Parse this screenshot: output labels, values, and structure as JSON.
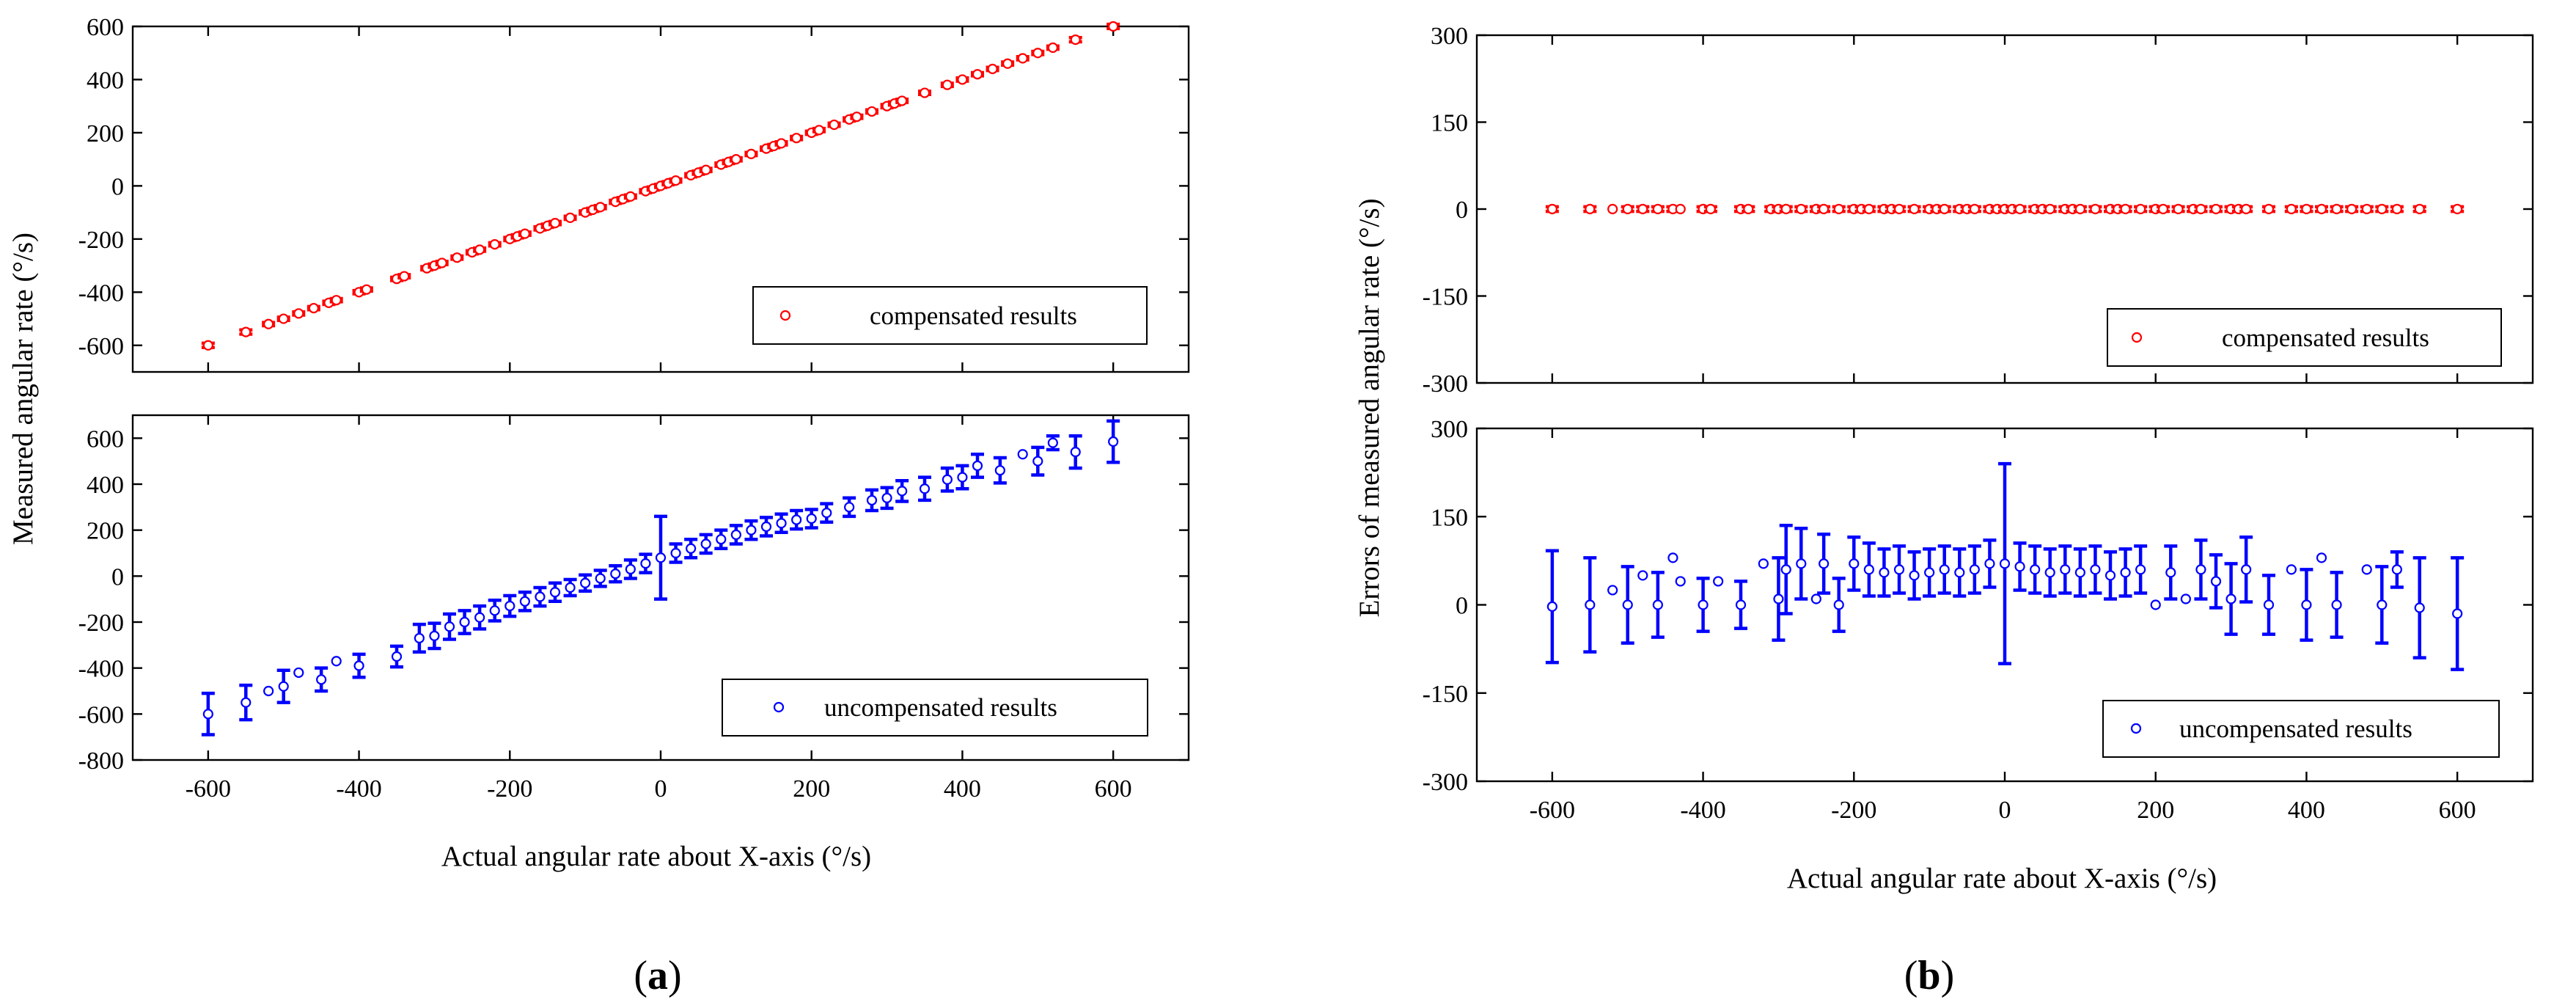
{
  "figure": {
    "panel_a_label": "a",
    "panel_b_label": "b"
  },
  "chart_data": [
    {
      "id": "a-top",
      "type": "scatter",
      "panel": "a",
      "xlabel": "Actual angular rate about X-axis (°/s)",
      "ylabel": "Measured angular rate (°/s)",
      "xlim": [
        -700,
        700
      ],
      "ylim": [
        -700,
        600
      ],
      "xticks": [
        -600,
        -400,
        -200,
        0,
        200,
        400,
        600
      ],
      "yticks": [
        -600,
        -400,
        -200,
        0,
        200,
        400,
        600
      ],
      "show_xtick_labels": false,
      "legend": {
        "label": "compensated results",
        "position": "bottom-right"
      },
      "series": [
        {
          "name": "compensated results",
          "color": "#ff0000",
          "x": [
            -600,
            -550,
            -520,
            -500,
            -480,
            -460,
            -440,
            -430,
            -400,
            -390,
            -350,
            -340,
            -310,
            -300,
            -290,
            -270,
            -250,
            -240,
            -220,
            -200,
            -190,
            -180,
            -160,
            -150,
            -140,
            -120,
            -100,
            -90,
            -80,
            -60,
            -50,
            -40,
            -20,
            -10,
            0,
            10,
            20,
            40,
            50,
            60,
            80,
            90,
            100,
            120,
            140,
            150,
            160,
            180,
            200,
            210,
            230,
            250,
            260,
            280,
            300,
            310,
            320,
            350,
            380,
            400,
            420,
            440,
            460,
            480,
            500,
            520,
            550,
            600
          ],
          "y": [
            -600,
            -550,
            -520,
            -500,
            -480,
            -460,
            -440,
            -430,
            -400,
            -390,
            -350,
            -340,
            -310,
            -300,
            -290,
            -270,
            -250,
            -240,
            -220,
            -200,
            -190,
            -180,
            -160,
            -150,
            -140,
            -120,
            -100,
            -90,
            -80,
            -60,
            -50,
            -40,
            -20,
            -10,
            0,
            10,
            20,
            40,
            50,
            60,
            80,
            90,
            100,
            120,
            140,
            150,
            160,
            180,
            200,
            210,
            230,
            250,
            260,
            280,
            300,
            310,
            320,
            350,
            380,
            400,
            420,
            440,
            460,
            480,
            500,
            520,
            550,
            600
          ],
          "err": [
            8,
            8,
            6,
            6,
            6,
            6,
            6,
            6,
            6,
            6,
            6,
            6,
            6,
            6,
            6,
            6,
            6,
            6,
            6,
            6,
            6,
            6,
            6,
            6,
            6,
            6,
            6,
            6,
            6,
            6,
            6,
            6,
            6,
            6,
            6,
            6,
            6,
            6,
            6,
            6,
            6,
            6,
            6,
            6,
            6,
            6,
            6,
            6,
            6,
            6,
            6,
            6,
            6,
            6,
            6,
            6,
            6,
            6,
            6,
            6,
            6,
            6,
            6,
            6,
            6,
            6,
            8,
            8
          ]
        }
      ]
    },
    {
      "id": "a-bottom",
      "type": "scatter",
      "panel": "a",
      "xlabel": "Actual angular rate about X-axis (°/s)",
      "ylabel": "Measured angular rate (°/s)",
      "xlim": [
        -700,
        700
      ],
      "ylim": [
        -800,
        700
      ],
      "xticks": [
        -600,
        -400,
        -200,
        0,
        200,
        400,
        600
      ],
      "yticks": [
        -800,
        -600,
        -400,
        -200,
        0,
        200,
        400,
        600
      ],
      "show_xtick_labels": true,
      "legend": {
        "label": "uncompensated results",
        "position": "bottom-right"
      },
      "series": [
        {
          "name": "uncompensated results",
          "color": "#0000ff",
          "x": [
            -600,
            -550,
            -520,
            -500,
            -480,
            -450,
            -430,
            -400,
            -350,
            -320,
            -300,
            -280,
            -260,
            -240,
            -220,
            -200,
            -180,
            -160,
            -140,
            -120,
            -100,
            -80,
            -60,
            -40,
            -20,
            0,
            20,
            40,
            60,
            80,
            100,
            120,
            140,
            160,
            180,
            200,
            220,
            250,
            280,
            300,
            320,
            350,
            380,
            400,
            420,
            450,
            480,
            500,
            520,
            550,
            600
          ],
          "y": [
            -600,
            -550,
            -500,
            -480,
            -420,
            -450,
            -370,
            -390,
            -350,
            -270,
            -260,
            -220,
            -200,
            -180,
            -150,
            -130,
            -110,
            -90,
            -70,
            -50,
            -30,
            -10,
            10,
            30,
            55,
            80,
            100,
            120,
            140,
            160,
            180,
            200,
            215,
            230,
            245,
            250,
            275,
            300,
            330,
            340,
            370,
            380,
            420,
            430,
            480,
            460,
            530,
            500,
            580,
            540,
            585
          ],
          "err": [
            90,
            75,
            0,
            70,
            0,
            50,
            0,
            50,
            45,
            60,
            55,
            55,
            50,
            50,
            45,
            45,
            40,
            40,
            40,
            35,
            35,
            35,
            35,
            40,
            40,
            180,
            40,
            40,
            40,
            40,
            40,
            40,
            40,
            40,
            40,
            40,
            40,
            40,
            45,
            45,
            45,
            50,
            50,
            50,
            50,
            55,
            0,
            60,
            30,
            70,
            90
          ]
        }
      ]
    },
    {
      "id": "b-top",
      "type": "scatter",
      "panel": "b",
      "xlabel": "Actual angular rate about X-axis (°/s)",
      "ylabel": "Errors of measured angular rate (°/s)",
      "xlim": [
        -700,
        700
      ],
      "ylim": [
        -300,
        300
      ],
      "xticks": [
        -600,
        -400,
        -200,
        0,
        200,
        400,
        600
      ],
      "yticks": [
        -300,
        -150,
        0,
        150,
        300
      ],
      "show_xtick_labels": false,
      "legend": {
        "label": "compensated results",
        "position": "bottom-right"
      },
      "series": [
        {
          "name": "compensated results",
          "color": "#ff0000",
          "x": [
            -600,
            -550,
            -520,
            -500,
            -480,
            -460,
            -440,
            -430,
            -400,
            -390,
            -350,
            -340,
            -310,
            -300,
            -290,
            -270,
            -250,
            -240,
            -220,
            -200,
            -190,
            -180,
            -160,
            -150,
            -140,
            -120,
            -100,
            -90,
            -80,
            -60,
            -50,
            -40,
            -20,
            -10,
            0,
            10,
            20,
            40,
            50,
            60,
            80,
            90,
            100,
            120,
            140,
            150,
            160,
            180,
            200,
            210,
            230,
            250,
            260,
            280,
            300,
            310,
            320,
            350,
            380,
            400,
            420,
            440,
            460,
            480,
            500,
            520,
            550,
            600
          ],
          "y": [
            0,
            0,
            0,
            0,
            0,
            0,
            0,
            0,
            0,
            0,
            0,
            0,
            0,
            0,
            0,
            0,
            0,
            0,
            0,
            0,
            0,
            0,
            0,
            0,
            0,
            0,
            0,
            0,
            0,
            0,
            0,
            0,
            0,
            0,
            0,
            0,
            0,
            0,
            0,
            0,
            0,
            0,
            0,
            0,
            0,
            0,
            0,
            0,
            0,
            0,
            0,
            0,
            0,
            0,
            0,
            0,
            0,
            0,
            0,
            0,
            0,
            0,
            0,
            0,
            0,
            0,
            0,
            0
          ],
          "err": [
            4,
            4,
            0,
            4,
            4,
            4,
            4,
            0,
            4,
            4,
            4,
            4,
            4,
            4,
            4,
            4,
            4,
            4,
            4,
            4,
            4,
            4,
            4,
            4,
            4,
            4,
            4,
            4,
            4,
            4,
            4,
            4,
            4,
            4,
            4,
            4,
            4,
            4,
            4,
            4,
            4,
            4,
            4,
            4,
            4,
            4,
            4,
            4,
            4,
            4,
            4,
            4,
            4,
            4,
            4,
            4,
            4,
            4,
            4,
            4,
            4,
            4,
            4,
            4,
            4,
            4,
            4,
            4
          ]
        }
      ]
    },
    {
      "id": "b-bottom",
      "type": "scatter",
      "panel": "b",
      "xlabel": "Actual angular rate about X-axis (°/s)",
      "ylabel": "Errors of measured angular rate (°/s)",
      "xlim": [
        -700,
        700
      ],
      "ylim": [
        -300,
        300
      ],
      "xticks": [
        -600,
        -400,
        -200,
        0,
        200,
        400,
        600
      ],
      "yticks": [
        -300,
        -150,
        0,
        150,
        300
      ],
      "show_xtick_labels": true,
      "legend": {
        "label": "uncompensated results",
        "position": "bottom-right"
      },
      "series": [
        {
          "name": "uncompensated results",
          "color": "#0000ff",
          "x": [
            -600,
            -550,
            -520,
            -500,
            -480,
            -460,
            -440,
            -430,
            -400,
            -380,
            -350,
            -320,
            -300,
            -290,
            -270,
            -250,
            -240,
            -220,
            -200,
            -180,
            -160,
            -140,
            -120,
            -100,
            -80,
            -60,
            -40,
            -20,
            0,
            20,
            40,
            60,
            80,
            100,
            120,
            140,
            160,
            180,
            200,
            220,
            240,
            260,
            280,
            300,
            320,
            350,
            380,
            400,
            420,
            440,
            480,
            500,
            520,
            550,
            600
          ],
          "y": [
            -3,
            0,
            25,
            0,
            50,
            0,
            80,
            40,
            0,
            40,
            0,
            70,
            10,
            60,
            70,
            10,
            70,
            0,
            70,
            60,
            55,
            60,
            50,
            55,
            60,
            55,
            60,
            70,
            70,
            65,
            60,
            55,
            60,
            55,
            60,
            50,
            55,
            60,
            0,
            55,
            10,
            60,
            40,
            10,
            60,
            0,
            60,
            0,
            80,
            0,
            60,
            0,
            60,
            -5,
            -15
          ],
          "err": [
            95,
            80,
            0,
            65,
            0,
            55,
            0,
            0,
            45,
            0,
            40,
            0,
            70,
            75,
            60,
            0,
            50,
            45,
            45,
            45,
            40,
            40,
            40,
            40,
            40,
            40,
            40,
            40,
            170,
            40,
            40,
            40,
            40,
            40,
            40,
            40,
            40,
            40,
            0,
            45,
            0,
            50,
            45,
            60,
            55,
            50,
            0,
            60,
            0,
            55,
            0,
            65,
            30,
            85,
            95
          ]
        }
      ]
    }
  ]
}
